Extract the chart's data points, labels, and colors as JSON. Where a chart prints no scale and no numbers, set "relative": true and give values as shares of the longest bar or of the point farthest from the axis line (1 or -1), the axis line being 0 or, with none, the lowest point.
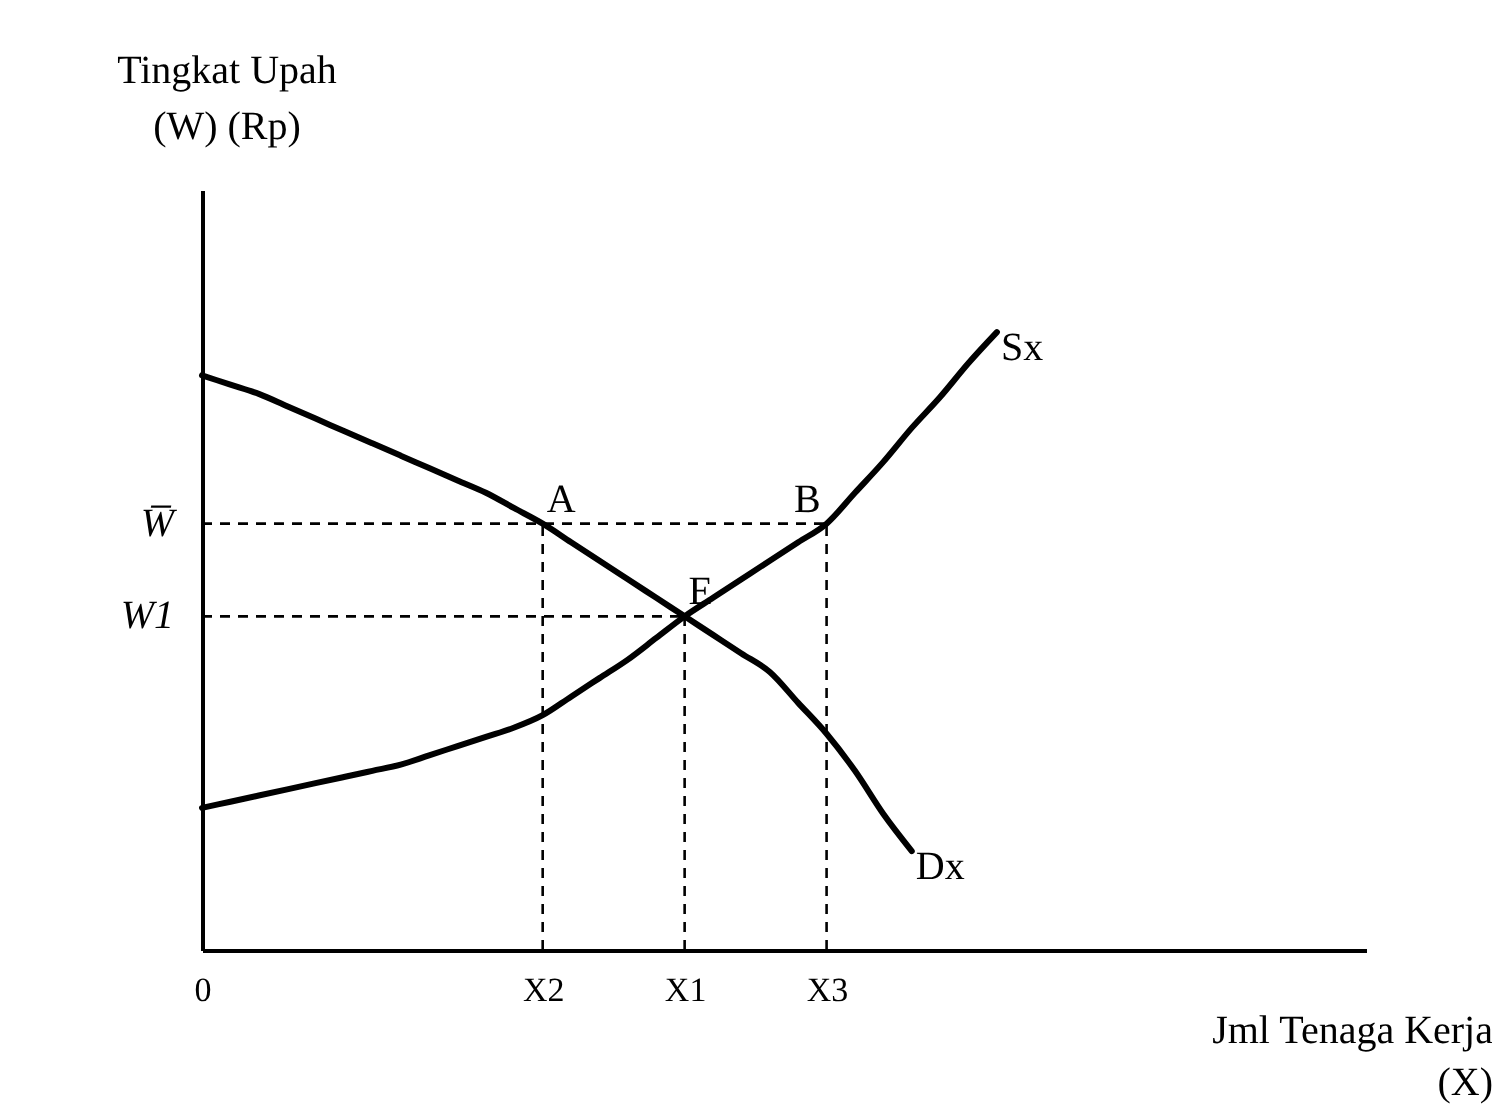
{
  "chart_data": {
    "type": "line",
    "relative": true,
    "xlabel": "Jml Tenaga Kerja\n(X)",
    "ylabel": "Tingkat Upah\n(W) (Rp)",
    "categories": [
      "0",
      null,
      null,
      null,
      null,
      null,
      null,
      null,
      null,
      null,
      null,
      null,
      "X2",
      null,
      null,
      null,
      null,
      "X1",
      null,
      null,
      null,
      null,
      "X3",
      null,
      null,
      null,
      null,
      null,
      null,
      null,
      null,
      null,
      null,
      null,
      null,
      null,
      null,
      null,
      null,
      null,
      null,
      null
    ],
    "series": [
      {
        "name": "Dx",
        "color": "#000000",
        "values": [
          0.93,
          0.915,
          0.9,
          0.88,
          0.86,
          0.84,
          0.82,
          0.8,
          0.78,
          0.76,
          0.74,
          0.715,
          0.69,
          0.66,
          0.63,
          0.6,
          0.57,
          0.54,
          0.51,
          0.48,
          0.45,
          0.4,
          0.35,
          0.29,
          0.22,
          0.16,
          null,
          null,
          null,
          null,
          null,
          null,
          null,
          null,
          null,
          null,
          null,
          null,
          null,
          null,
          null,
          null
        ]
      },
      {
        "name": "Sx",
        "color": "#000000",
        "values": [
          0.23,
          0.24,
          0.25,
          0.26,
          0.27,
          0.28,
          0.29,
          0.3,
          0.315,
          0.33,
          0.345,
          0.36,
          0.38,
          0.41,
          0.44,
          0.47,
          0.505,
          0.54,
          0.57,
          0.6,
          0.63,
          0.66,
          0.69,
          0.74,
          0.79,
          0.845,
          0.895,
          0.95,
          1.0,
          null,
          null,
          null,
          null,
          null,
          null,
          null,
          null,
          null,
          null,
          null,
          null,
          null
        ]
      }
    ],
    "ref_lines": [
      {
        "axis": "y",
        "value": 0.69,
        "label": "W̅",
        "line_style": "dashed"
      },
      {
        "axis": "y",
        "value": 0.54,
        "label": "W1",
        "line_style": "dashed"
      },
      {
        "axis": "x",
        "value": "X2",
        "line_style": "dashed"
      },
      {
        "axis": "x",
        "value": "X1",
        "line_style": "dashed"
      },
      {
        "axis": "x",
        "value": "X3",
        "line_style": "dashed"
      }
    ],
    "annotations": [
      {
        "text": "A",
        "x": "X2",
        "y": 0.69
      },
      {
        "text": "B",
        "x": "X3",
        "y": 0.69
      },
      {
        "text": "E",
        "x": "X1",
        "y": 0.54
      }
    ],
    "legend": false,
    "grid": false,
    "marker": "none",
    "line_style": "solid"
  }
}
